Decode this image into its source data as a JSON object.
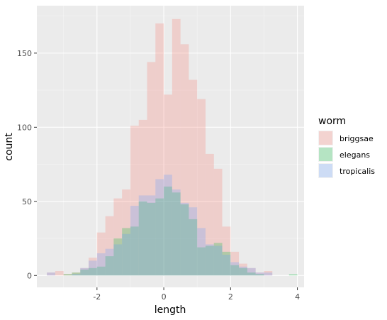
{
  "chart_data": {
    "type": "histogram",
    "title": "",
    "xlabel": "length",
    "ylabel": "count",
    "xlim": [
      -3.8,
      4.2
    ],
    "ylim": [
      -8,
      182
    ],
    "x_ticks": [
      -2,
      0,
      2,
      4
    ],
    "y_ticks": [
      0,
      50,
      100,
      150
    ],
    "bin_width": 0.25,
    "bin_starts": [
      -3.5,
      -3.25,
      -3.0,
      -2.75,
      -2.5,
      -2.25,
      -2.0,
      -1.75,
      -1.5,
      -1.25,
      -1.0,
      -0.75,
      -0.5,
      -0.25,
      0.0,
      0.25,
      0.5,
      0.75,
      1.0,
      1.25,
      1.5,
      1.75,
      2.0,
      2.25,
      2.5,
      2.75,
      3.0,
      3.25,
      3.5,
      3.75
    ],
    "legend": {
      "title": "worm",
      "position": "right"
    },
    "series": [
      {
        "name": "briggsae",
        "color": "#F8766D",
        "values": [
          2,
          3,
          1,
          2,
          5,
          12,
          29,
          40,
          52,
          58,
          101,
          105,
          144,
          170,
          122,
          173,
          156,
          132,
          119,
          82,
          72,
          33,
          16,
          8,
          5,
          2,
          3,
          0,
          0,
          0
        ]
      },
      {
        "name": "elegans",
        "color": "#00BA38",
        "values": [
          0,
          0,
          1,
          2,
          4,
          5,
          6,
          13,
          25,
          32,
          33,
          50,
          49,
          52,
          60,
          56,
          48,
          38,
          19,
          20,
          22,
          16,
          7,
          5,
          2,
          1,
          0,
          0,
          0,
          1
        ]
      },
      {
        "name": "tropicalis",
        "color": "#619CFF",
        "values": [
          2,
          0,
          0,
          1,
          5,
          10,
          15,
          18,
          21,
          28,
          47,
          54,
          54,
          65,
          68,
          58,
          49,
          46,
          32,
          21,
          20,
          14,
          9,
          6,
          5,
          2,
          2,
          0,
          0,
          0
        ]
      }
    ]
  }
}
